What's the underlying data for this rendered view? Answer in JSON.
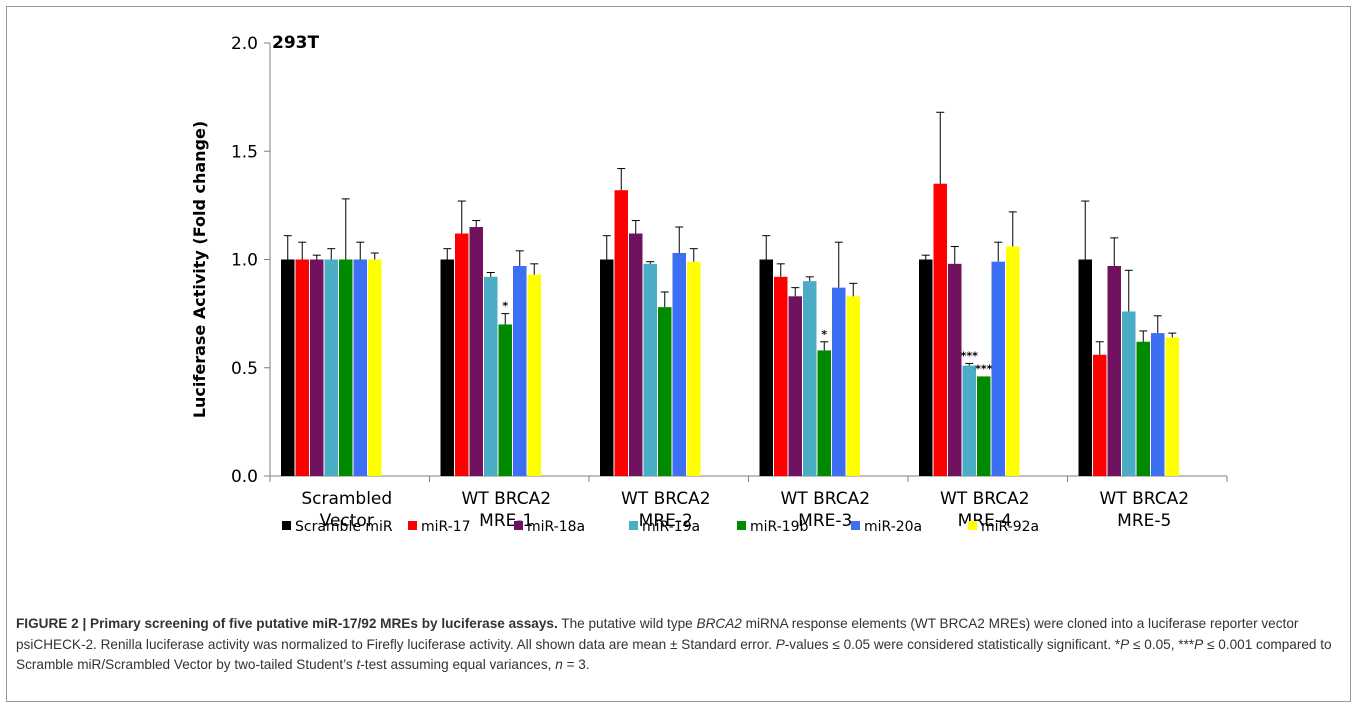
{
  "chart_data": {
    "type": "bar",
    "title": "293T",
    "ylabel": "Luciferase Activity (Fold change)",
    "xlabel": "",
    "ylim": [
      0,
      2.0
    ],
    "yticks": [
      "0.0",
      "0.5",
      "1.0",
      "1.5",
      "2.0"
    ],
    "categories": [
      [
        "Scrambled",
        "Vector"
      ],
      [
        "WT BRCA2",
        "MRE-1"
      ],
      [
        "WT BRCA2",
        "MRE-2"
      ],
      [
        "WT BRCA2",
        "MRE-3"
      ],
      [
        "WT BRCA2",
        "MRE-4"
      ],
      [
        "WT BRCA2",
        "MRE-5"
      ]
    ],
    "series": [
      {
        "name": "Scramble miR",
        "color": "#000000",
        "values": [
          1.0,
          1.0,
          1.0,
          1.0,
          1.0,
          1.0
        ],
        "errors": [
          0.11,
          0.05,
          0.11,
          0.11,
          0.02,
          0.27
        ]
      },
      {
        "name": "miR-17",
        "color": "#ff0000",
        "values": [
          1.0,
          1.12,
          1.32,
          0.92,
          1.35,
          0.56
        ],
        "errors": [
          0.08,
          0.15,
          0.1,
          0.06,
          0.33,
          0.06
        ]
      },
      {
        "name": "miR-18a",
        "color": "#70125f",
        "values": [
          1.0,
          1.15,
          1.12,
          0.83,
          0.98,
          0.97
        ],
        "errors": [
          0.02,
          0.03,
          0.06,
          0.04,
          0.08,
          0.13
        ]
      },
      {
        "name": "miR-19a",
        "color": "#4bacc6",
        "values": [
          1.0,
          0.92,
          0.98,
          0.9,
          0.51,
          0.76
        ],
        "errors": [
          0.05,
          0.02,
          0.01,
          0.02,
          0.01,
          0.19
        ]
      },
      {
        "name": "miR-19b",
        "color": "#008a00",
        "values": [
          1.0,
          0.7,
          0.78,
          0.58,
          0.46,
          0.62
        ],
        "errors": [
          0.28,
          0.05,
          0.07,
          0.04,
          0.0,
          0.05
        ]
      },
      {
        "name": "miR-20a",
        "color": "#3d6ff2",
        "values": [
          1.0,
          0.97,
          1.03,
          0.87,
          0.99,
          0.66
        ],
        "errors": [
          0.08,
          0.07,
          0.12,
          0.21,
          0.09,
          0.08
        ]
      },
      {
        "name": "miR-92a",
        "color": "#ffff00",
        "values": [
          1.0,
          0.93,
          0.99,
          0.83,
          1.06,
          0.64
        ],
        "errors": [
          0.03,
          0.05,
          0.06,
          0.06,
          0.16,
          0.02
        ]
      }
    ],
    "annotations": [
      {
        "series": "miR-19b",
        "category": 1,
        "text": "*"
      },
      {
        "series": "miR-19b",
        "category": 3,
        "text": "*"
      },
      {
        "series": "miR-19a",
        "category": 4,
        "text": "***"
      },
      {
        "series": "miR-19b",
        "category": 4,
        "text": "***"
      }
    ],
    "legend_position": "bottom",
    "grid": false
  },
  "caption": {
    "head": "FIGURE 2 | Primary screening of five putative miR-17/92 MREs by luciferase assays.",
    "body_html": " The putative wild type <i>BRCA2</i> miRNA response elements (WT BRCA2 MREs) were cloned into a luciferase reporter vector psiCHECK-2. Renilla luciferase activity was normalized to Firefly luciferase activity. All shown data are mean ± Standard error. <i>P</i>-values ≤ 0.05 were considered statistically significant. *<i>P</i> ≤ 0.05, ***<i>P</i> ≤ 0.001 compared to Scramble miR/Scrambled Vector by two-tailed Student’s <i>t</i>-test assuming equal variances, <i>n</i> = 3."
  }
}
